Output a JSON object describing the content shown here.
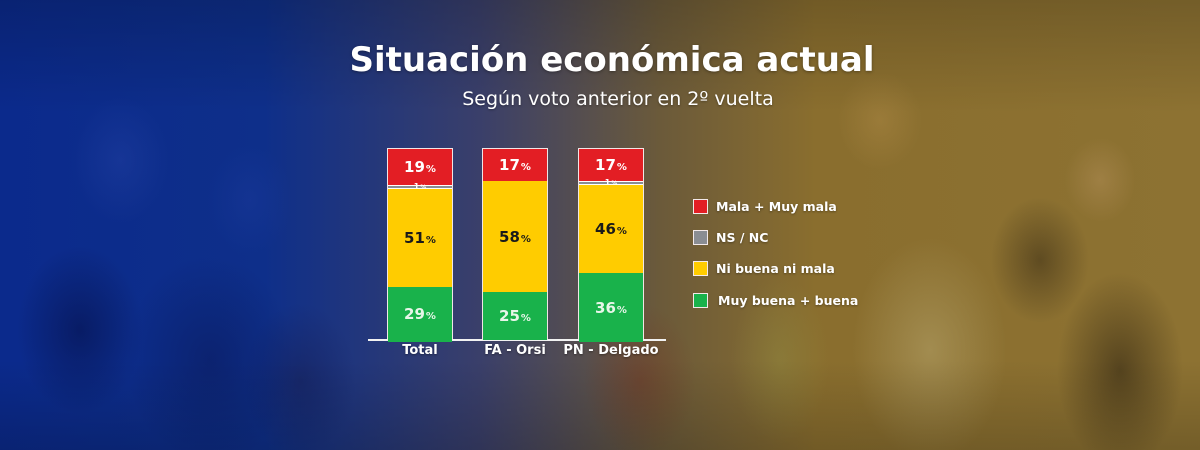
{
  "header": {
    "title": "Situación económica actual",
    "subtitle": "Según voto anterior en 2º vuelta"
  },
  "colors": {
    "mala": "#e31e24",
    "nsnc": "#8a8d93",
    "ni": "#ffcc00",
    "buena": "#19b24b"
  },
  "chart_data": {
    "type": "bar",
    "stacked": true,
    "orientation": "vertical",
    "title": "Situación económica actual",
    "subtitle": "Según voto anterior en 2º vuelta",
    "xlabel": "",
    "ylabel": "",
    "ylim": [
      0,
      100
    ],
    "grid": false,
    "legend_position": "right",
    "categories": [
      "Total",
      "FA - Orsi",
      "PN - Delgado"
    ],
    "series": [
      {
        "name": "Muy buena + buena",
        "key": "buena",
        "color": "#19b24b",
        "values": [
          29,
          25,
          36
        ]
      },
      {
        "name": "Ni buena ni mala",
        "key": "ni",
        "color": "#ffcc00",
        "values": [
          51,
          58,
          46
        ]
      },
      {
        "name": "NS / NC",
        "key": "nsnc",
        "color": "#8a8d93",
        "values": [
          1,
          0,
          1
        ]
      },
      {
        "name": "Mala + Muy mala",
        "key": "mala",
        "color": "#e31e24",
        "values": [
          19,
          17,
          17
        ]
      }
    ],
    "value_labels": [
      {
        "category": "Total",
        "mala": "19",
        "nsnc": "1",
        "ni": "51",
        "buena": "29"
      },
      {
        "category": "FA - Orsi",
        "mala": "17",
        "nsnc": "",
        "ni": "58",
        "buena": "25"
      },
      {
        "category": "PN - Delgado",
        "mala": "17",
        "nsnc": "1",
        "ni": "46",
        "buena": "36"
      }
    ],
    "percent_symbol": "%",
    "legend": [
      {
        "label": "Mala + Muy mala",
        "key": "mala",
        "color": "#e31e24"
      },
      {
        "label": "NS / NC",
        "key": "nsnc",
        "color": "#8a8d93"
      },
      {
        "label": "Ni buena ni mala",
        "key": "ni",
        "color": "#ffcc00"
      },
      {
        "label": "Muy buena + buena",
        "key": "buena",
        "color": "#19b24b"
      }
    ]
  }
}
